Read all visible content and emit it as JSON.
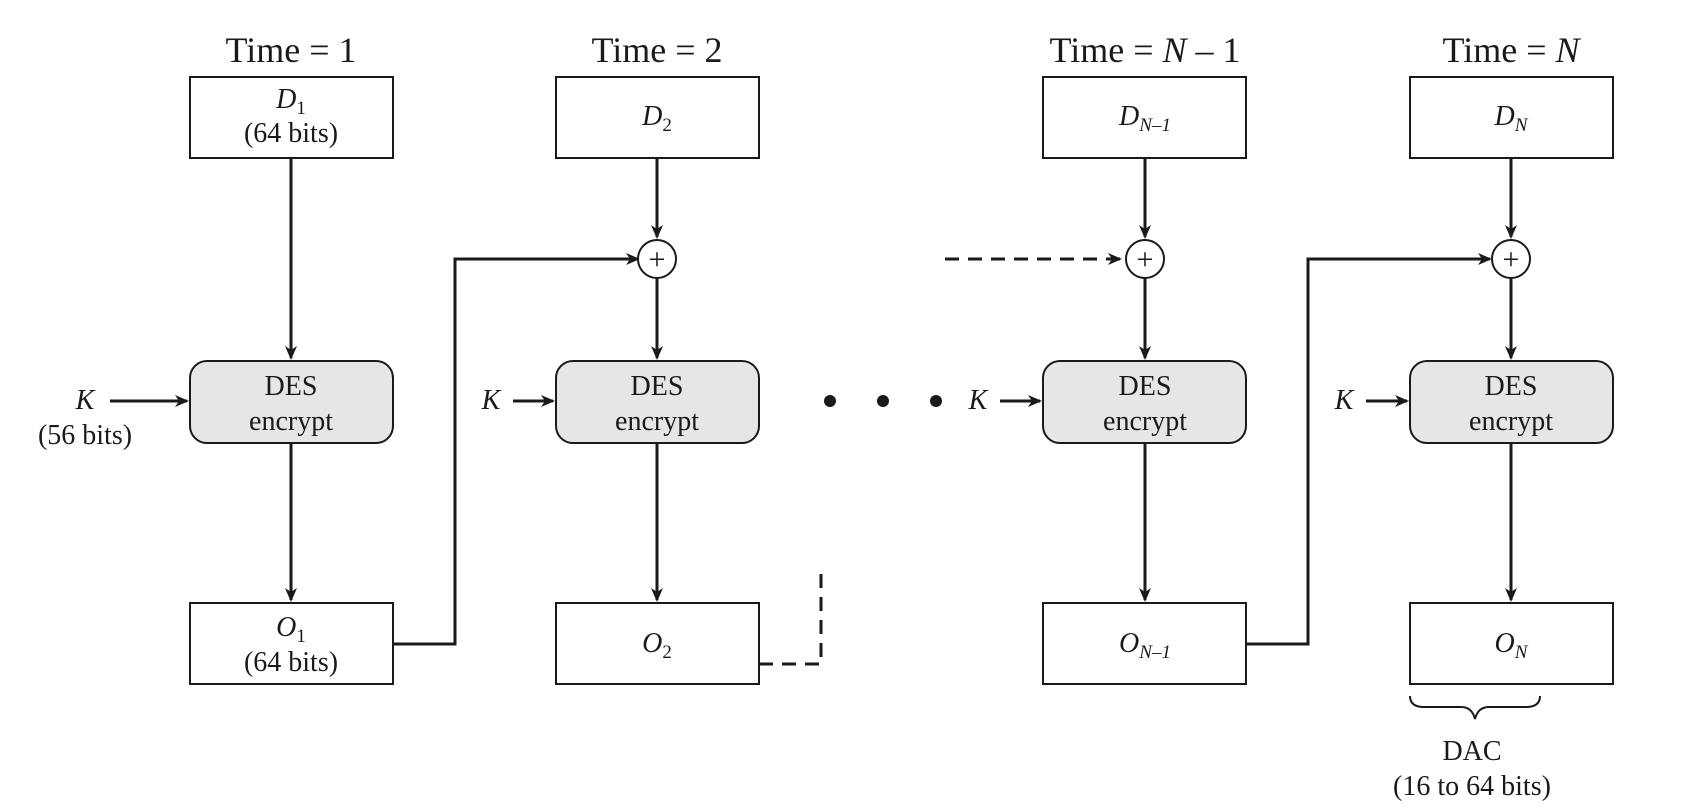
{
  "colors": {
    "ink": "#1a1a1a",
    "des_fill": "#e6e6e6",
    "background": "#ffffff"
  },
  "stages": [
    {
      "time_prefix": "Time = ",
      "time_var": "1",
      "time_var_italic": false,
      "data_letter": "D",
      "data_sub": "1",
      "data_note": "(64 bits)",
      "des_line1": "DES",
      "des_line2": "encrypt",
      "key": "K",
      "key_note": "(56 bits)",
      "out_letter": "O",
      "out_sub": "1",
      "out_note": "(64 bits)"
    },
    {
      "time_prefix": "Time = ",
      "time_var": "2",
      "time_var_italic": false,
      "data_letter": "D",
      "data_sub": "2",
      "des_line1": "DES",
      "des_line2": "encrypt",
      "key": "K",
      "out_letter": "O",
      "out_sub": "2"
    },
    {
      "time_prefix": "Time = ",
      "time_var": "N",
      "time_var_italic": true,
      "time_suffix": " – 1",
      "data_letter": "D",
      "data_sub": "N–1",
      "des_line1": "DES",
      "des_line2": "encrypt",
      "key": "K",
      "out_letter": "O",
      "out_sub": "N–1"
    },
    {
      "time_prefix": "Time = ",
      "time_var": "N",
      "time_var_italic": true,
      "data_letter": "D",
      "data_sub": "N",
      "des_line1": "DES",
      "des_line2": "encrypt",
      "key": "K",
      "out_letter": "O",
      "out_sub": "N"
    }
  ],
  "xor_symbol": "+",
  "dac": {
    "label": "DAC",
    "note": "(16 to 64 bits)"
  }
}
